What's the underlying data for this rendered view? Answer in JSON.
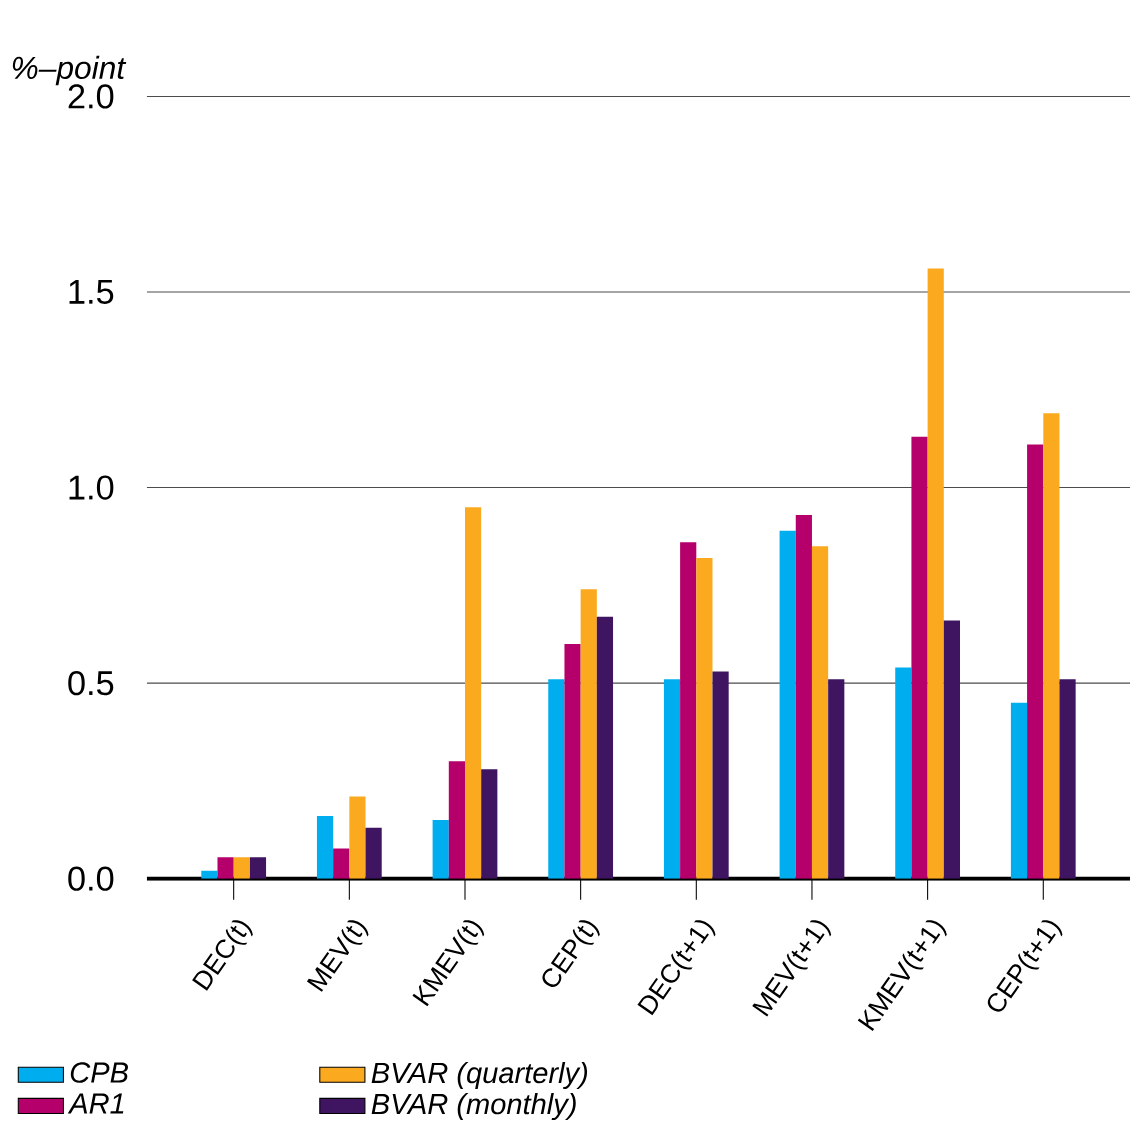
{
  "chart_data": {
    "type": "bar",
    "ylabel": "%–point",
    "categories": [
      "DEC(t)",
      "MEV(t)",
      "KMEV(t)",
      "CEP(t)",
      "DEC(t+1)",
      "MEV(t+1)",
      "KMEV(t+1)",
      "CEP(t+1)"
    ],
    "series": [
      {
        "name": "CPB",
        "color": "#00aeef",
        "values": [
          0.02,
          0.16,
          0.15,
          0.51,
          0.51,
          0.89,
          0.54,
          0.45
        ]
      },
      {
        "name": "AR1",
        "color": "#b5006b",
        "values": [
          0.055,
          0.077,
          0.3,
          0.6,
          0.86,
          0.93,
          1.13,
          1.11
        ]
      },
      {
        "name": "BVAR (quarterly)",
        "color": "#fbaa1f",
        "values": [
          0.055,
          0.21,
          0.95,
          0.74,
          0.82,
          0.85,
          1.56,
          1.19
        ]
      },
      {
        "name": "BVAR (monthly)",
        "color": "#3f1561",
        "values": [
          0.055,
          0.13,
          0.28,
          0.67,
          0.53,
          0.51,
          0.66,
          0.51
        ]
      }
    ],
    "ylim": [
      0,
      2
    ],
    "yticks": [
      {
        "value": 0,
        "label": "0.0"
      },
      {
        "value": 0.5,
        "label": "0.5"
      },
      {
        "value": 1,
        "label": "1.0"
      },
      {
        "value": 1.5,
        "label": "1.5"
      },
      {
        "value": 2,
        "label": "2.0"
      }
    ],
    "grid": "y",
    "legend": "bottom"
  }
}
